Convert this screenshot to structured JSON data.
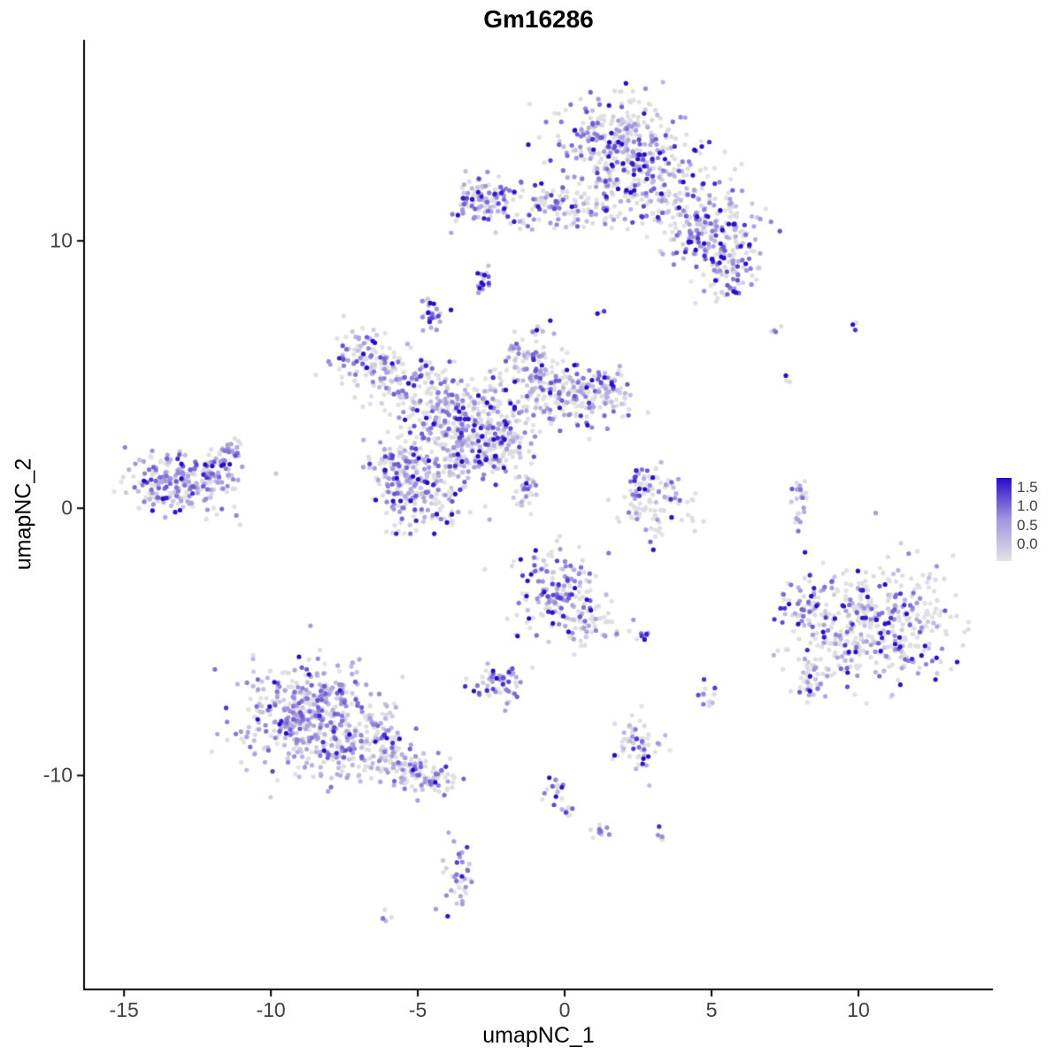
{
  "chart_data": {
    "type": "scatter",
    "title": "Gm16286",
    "xlabel": "umapNC_1",
    "ylabel": "umapNC_2",
    "x_axis": {
      "ticks": [
        -15,
        -10,
        -5,
        0,
        5,
        10
      ],
      "range": [
        -16.4,
        14.6
      ]
    },
    "y_axis": {
      "ticks": [
        -10,
        0,
        10
      ],
      "range": [
        -18.0,
        17.5
      ]
    },
    "legend": {
      "labels": [
        "1.5",
        "1.0",
        "0.5",
        "0.0"
      ],
      "max": 1.5
    },
    "colors": {
      "low": "#E3E3E3",
      "mid": "#A396DE",
      "high": "#2A0BC8",
      "background": "#FFFFFF",
      "axis": "#000000"
    },
    "point_radius": 2.6,
    "cluster_fields": [
      "x",
      "y",
      "sx",
      "sy",
      "n",
      "frac_zero",
      "frac_high"
    ],
    "clusters": [
      [
        1.8,
        13.8,
        1.0,
        0.9,
        280,
        0.45,
        0.12
      ],
      [
        3.2,
        12.2,
        1.1,
        0.8,
        180,
        0.45,
        0.1
      ],
      [
        5.0,
        10.3,
        0.9,
        0.7,
        200,
        0.35,
        0.12
      ],
      [
        0.0,
        11.3,
        1.5,
        0.45,
        160,
        0.45,
        0.1
      ],
      [
        -2.8,
        11.5,
        0.5,
        0.45,
        90,
        0.35,
        0.2
      ],
      [
        5.6,
        8.9,
        0.5,
        0.5,
        60,
        0.4,
        0.15
      ],
      [
        -2.9,
        8.5,
        0.18,
        0.28,
        18,
        0.2,
        0.3
      ],
      [
        -4.55,
        7.3,
        0.22,
        0.3,
        25,
        0.2,
        0.25
      ],
      [
        1.3,
        7.3,
        0.15,
        0.15,
        3,
        0.5,
        0.2
      ],
      [
        -6.8,
        5.6,
        0.6,
        0.6,
        90,
        0.5,
        0.08
      ],
      [
        -5.5,
        4.8,
        0.7,
        0.5,
        90,
        0.5,
        0.08
      ],
      [
        -4.2,
        3.6,
        0.8,
        0.7,
        150,
        0.45,
        0.08
      ],
      [
        -2.7,
        3.1,
        0.8,
        0.8,
        200,
        0.45,
        0.1
      ],
      [
        -1.2,
        5.5,
        0.5,
        0.7,
        90,
        0.5,
        0.08
      ],
      [
        -0.5,
        4.3,
        0.8,
        0.6,
        120,
        0.5,
        0.08
      ],
      [
        1.2,
        4.2,
        0.7,
        0.5,
        110,
        0.45,
        0.1
      ],
      [
        -4.9,
        0.7,
        0.8,
        0.8,
        180,
        0.4,
        0.15
      ],
      [
        -5.8,
        1.6,
        0.5,
        0.5,
        80,
        0.45,
        0.1
      ],
      [
        -3.6,
        1.9,
        0.5,
        0.6,
        100,
        0.45,
        0.1
      ],
      [
        -2.0,
        2.3,
        0.4,
        0.5,
        60,
        0.5,
        0.08
      ],
      [
        -1.3,
        0.7,
        0.25,
        0.45,
        30,
        0.5,
        0.1
      ],
      [
        -13.0,
        1.0,
        1.0,
        0.55,
        260,
        0.35,
        0.08
      ],
      [
        -11.4,
        2.1,
        0.3,
        0.3,
        30,
        0.4,
        0.08
      ],
      [
        3.0,
        0.2,
        0.6,
        0.6,
        90,
        0.7,
        0.08
      ],
      [
        2.6,
        1.1,
        0.3,
        0.25,
        25,
        0.45,
        0.2
      ],
      [
        8.0,
        0.3,
        0.15,
        0.5,
        25,
        0.55,
        0.05
      ],
      [
        7.1,
        6.7,
        0.1,
        0.1,
        4,
        0.5,
        0.25
      ],
      [
        9.9,
        6.7,
        0.1,
        0.1,
        3,
        0.4,
        0.3
      ],
      [
        7.6,
        4.8,
        0.1,
        0.1,
        3,
        0.6,
        0.1
      ],
      [
        10.5,
        -4.4,
        1.3,
        1.1,
        430,
        0.55,
        0.1
      ],
      [
        8.2,
        -3.7,
        0.35,
        0.5,
        50,
        0.4,
        0.15
      ],
      [
        8.4,
        -6.3,
        0.3,
        0.4,
        40,
        0.5,
        0.1
      ],
      [
        -0.3,
        -3.2,
        0.7,
        0.8,
        170,
        0.5,
        0.1
      ],
      [
        0.9,
        -4.5,
        0.55,
        0.4,
        50,
        0.75,
        0.03
      ],
      [
        2.7,
        -4.8,
        0.12,
        0.12,
        8,
        0.3,
        0.2
      ],
      [
        -2.3,
        -6.5,
        0.4,
        0.35,
        60,
        0.45,
        0.15
      ],
      [
        -8.6,
        -7.7,
        1.2,
        1.0,
        450,
        0.35,
        0.05
      ],
      [
        -6.8,
        -9.0,
        0.8,
        0.6,
        150,
        0.45,
        0.05
      ],
      [
        -5.2,
        -9.8,
        0.6,
        0.4,
        80,
        0.55,
        0.08
      ],
      [
        -4.3,
        -10.2,
        0.3,
        0.25,
        30,
        0.5,
        0.08
      ],
      [
        2.5,
        -8.8,
        0.4,
        0.5,
        60,
        0.5,
        0.12
      ],
      [
        4.9,
        -7.0,
        0.15,
        0.3,
        12,
        0.35,
        0.15
      ],
      [
        -0.35,
        -10.6,
        0.2,
        0.3,
        14,
        0.4,
        0.15
      ],
      [
        0.1,
        -11.4,
        0.15,
        0.2,
        8,
        0.4,
        0.15
      ],
      [
        1.0,
        -12.0,
        0.25,
        0.2,
        10,
        0.4,
        0.15
      ],
      [
        3.3,
        -12.2,
        0.1,
        0.15,
        5,
        0.4,
        0.2
      ],
      [
        -3.6,
        -13.8,
        0.25,
        0.6,
        40,
        0.45,
        0.1
      ],
      [
        -6.1,
        -15.3,
        0.12,
        0.12,
        5,
        0.8,
        0.0
      ]
    ]
  }
}
